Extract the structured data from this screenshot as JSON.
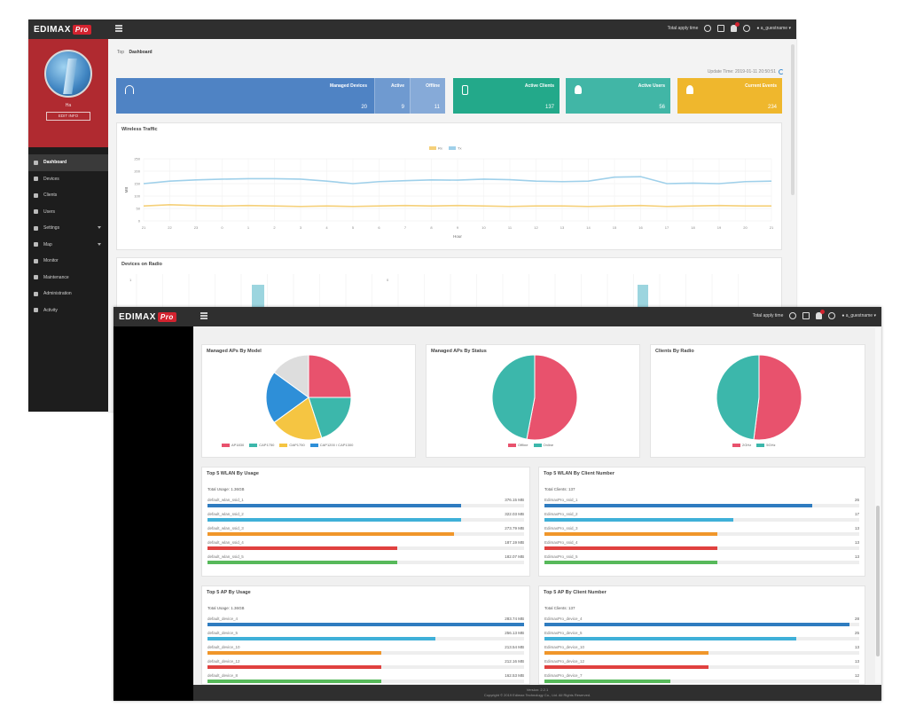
{
  "brand": {
    "logo_text": "EDIMAX",
    "logo_pro": "Pro"
  },
  "colors": {
    "blue": "#4f83c4",
    "green": "#23a98a",
    "teal": "#41b6a6",
    "yellow": "#efb72d",
    "pink": "#e8526d",
    "pie_teal": "#3cb7ab",
    "pie_yellow": "#f5c542",
    "pie_blue": "#2e8fd8",
    "pie_grey": "#dddddd",
    "bar1": "#2f7cc0",
    "bar2": "#3fb0d8",
    "bar3": "#f0962a",
    "bar4": "#e0413f",
    "bar5": "#57b95a"
  },
  "topbar": {
    "apply_label": "Total apply time",
    "user_label": "a_guestname"
  },
  "back": {
    "user": {
      "name": "Ha",
      "button": "EDIT INFO"
    },
    "nav": [
      {
        "label": "Dashboard",
        "icon": "home-icon",
        "active": true
      },
      {
        "label": "Devices",
        "icon": "devices-icon"
      },
      {
        "label": "Clients",
        "icon": "clients-icon"
      },
      {
        "label": "Users",
        "icon": "users-icon"
      },
      {
        "label": "Settings",
        "icon": "settings-icon",
        "caret": true
      },
      {
        "label": "Map",
        "icon": "map-icon",
        "caret": true
      },
      {
        "label": "Monitor",
        "icon": "monitor-icon"
      },
      {
        "label": "Maintenance",
        "icon": "wrench-icon"
      },
      {
        "label": "Administration",
        "icon": "admin-icon"
      },
      {
        "label": "Activity",
        "icon": "activity-icon"
      }
    ],
    "breadcrumb": {
      "home": "Top",
      "current": "Dashboard"
    },
    "update_time": "Update Time: 2019-01-11 20:50:51",
    "cards": {
      "managed": {
        "label": "Managed Devices",
        "value": "20",
        "active_label": "Active",
        "active_value": "9",
        "offline_label": "Offline",
        "offline_value": "11"
      },
      "clients": {
        "label": "Active Clients",
        "value": "137"
      },
      "users": {
        "label": "Active Users",
        "value": "56"
      },
      "events": {
        "label": "Current Events",
        "value": "234"
      }
    },
    "traffic_title": "Wireless Traffic",
    "radio_title": "Devices on Radio",
    "radio_axis": {
      "y_tick": "1",
      "mid_tick": "0"
    }
  },
  "chart_data": [
    {
      "type": "line",
      "title": "Wireless Traffic",
      "xlabel": "Hour",
      "ylabel": "MB",
      "legend": [
        "Rx",
        "Tx"
      ],
      "legend_position": "top-center",
      "ylim": [
        0,
        250
      ],
      "y_ticks": [
        "250",
        "200",
        "150",
        "100",
        "50",
        "0"
      ],
      "x": [
        "21",
        "22",
        "23",
        "0",
        "1",
        "2",
        "3",
        "4",
        "5",
        "6",
        "7",
        "8",
        "9",
        "10",
        "11",
        "12",
        "13",
        "14",
        "15",
        "16",
        "17",
        "18",
        "19",
        "20",
        "21"
      ],
      "series": [
        {
          "name": "Tx",
          "values": [
            150,
            160,
            165,
            168,
            170,
            170,
            168,
            160,
            150,
            158,
            162,
            165,
            164,
            168,
            166,
            160,
            158,
            160,
            176,
            178,
            150,
            152,
            150,
            158,
            160
          ]
        },
        {
          "name": "Rx",
          "values": [
            60,
            65,
            62,
            60,
            62,
            60,
            58,
            60,
            58,
            60,
            62,
            60,
            62,
            60,
            58,
            60,
            60,
            58,
            60,
            62,
            58,
            60,
            62,
            60,
            60
          ]
        }
      ]
    },
    {
      "type": "pie",
      "title": "Managed APs By Model",
      "categories": [
        "AP1830",
        "CAP1750",
        "OAP1750",
        "CAP1200",
        "CAP1300"
      ],
      "values": [
        25,
        20,
        20,
        20,
        15
      ]
    },
    {
      "type": "pie",
      "title": "Managed APs By Status",
      "categories": [
        "Offline",
        "Online"
      ],
      "values": [
        53,
        47
      ]
    },
    {
      "type": "pie",
      "title": "Clients By Radio",
      "categories": [
        "2GHz",
        "5GHz"
      ],
      "values": [
        52,
        48
      ]
    }
  ],
  "pies": [
    {
      "title": "Managed APs By Model",
      "legend": [
        "AP1830",
        "CAP1750",
        "OAP1750",
        "CAP1200 / CAP1300"
      ]
    },
    {
      "title": "Managed APs By Status",
      "legend": [
        "Offline",
        "Online"
      ]
    },
    {
      "title": "Clients By Radio",
      "legend": [
        "2GHz",
        "5GHz"
      ]
    }
  ],
  "top5": [
    {
      "title": "Top 5 WLAN By Usage",
      "total": "Total Usage: 1.36GB",
      "rows": [
        {
          "name": "default_wlan_ssid_1",
          "value": "376.15 MB",
          "pct": 0.8
        },
        {
          "name": "default_wlan_ssid_2",
          "value": "322.03 MB",
          "pct": 0.8
        },
        {
          "name": "default_wlan_ssid_3",
          "value": "273.79 MB",
          "pct": 0.78
        },
        {
          "name": "default_wlan_ssid_4",
          "value": "187.19 MB",
          "pct": 0.6
        },
        {
          "name": "default_wlan_ssid_5",
          "value": "182.07 MB",
          "pct": 0.6
        }
      ]
    },
    {
      "title": "Top 5 WLAN By Client Number",
      "total": "Total Clients: 137",
      "rows": [
        {
          "name": "EdimaxPro_ssid_1",
          "value": "26",
          "pct": 0.85
        },
        {
          "name": "EdimaxPro_ssid_2",
          "value": "17",
          "pct": 0.6
        },
        {
          "name": "EdimaxPro_ssid_3",
          "value": "13",
          "pct": 0.55
        },
        {
          "name": "EdimaxPro_ssid_4",
          "value": "13",
          "pct": 0.55
        },
        {
          "name": "EdimaxPro_ssid_5",
          "value": "13",
          "pct": 0.55
        }
      ]
    },
    {
      "title": "Top 5 AP By Usage",
      "total": "Total Usage: 1.36GB",
      "rows": [
        {
          "name": "default_device_4",
          "value": "283.74 MB",
          "pct": 1.0
        },
        {
          "name": "default_device_5",
          "value": "256.13 MB",
          "pct": 0.72
        },
        {
          "name": "default_device_10",
          "value": "213.54 MB",
          "pct": 0.55
        },
        {
          "name": "default_device_12",
          "value": "212.16 MB",
          "pct": 0.55
        },
        {
          "name": "default_device_8",
          "value": "162.53 MB",
          "pct": 0.55
        }
      ]
    },
    {
      "title": "Top 5 AP By Client Number",
      "total": "Total Clients: 137",
      "rows": [
        {
          "name": "EdimaxPro_device_4",
          "value": "28",
          "pct": 0.97
        },
        {
          "name": "EdimaxPro_device_5",
          "value": "25",
          "pct": 0.8
        },
        {
          "name": "EdimaxPro_device_10",
          "value": "13",
          "pct": 0.52
        },
        {
          "name": "EdimaxPro_device_12",
          "value": "13",
          "pct": 0.52
        },
        {
          "name": "EdimaxPro_device_7",
          "value": "12",
          "pct": 0.4
        }
      ]
    }
  ],
  "footer": {
    "line1": "Version: 2.2.1",
    "line2": "Copyright © 2019 Edimax Technology Co., Ltd. All Rights Reserved."
  }
}
